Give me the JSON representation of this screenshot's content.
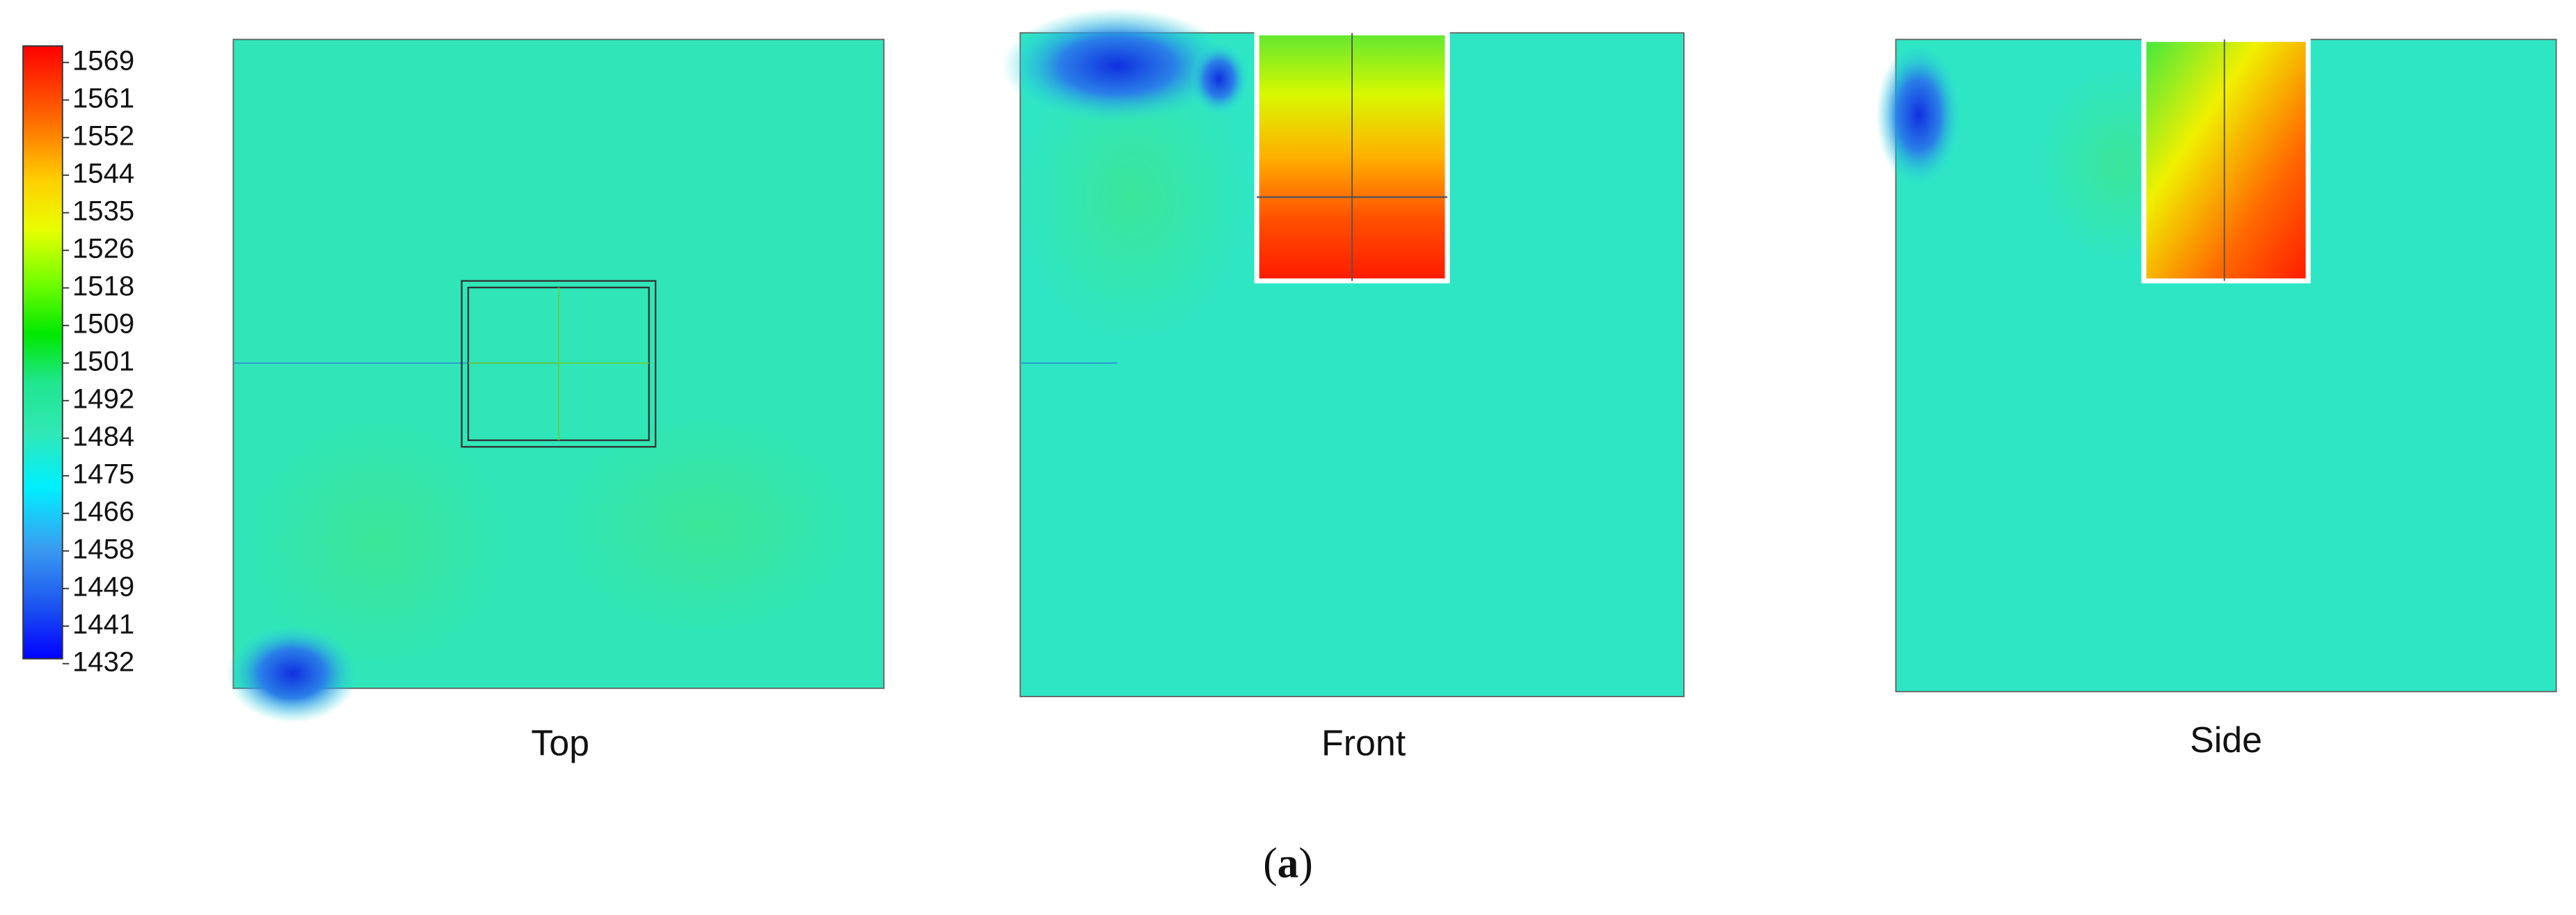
{
  "colorbar": {
    "labels": [
      1569,
      1561,
      1552,
      1544,
      1535,
      1526,
      1518,
      1509,
      1501,
      1492,
      1484,
      1475,
      1466,
      1458,
      1449,
      1441,
      1432
    ]
  },
  "panels": [
    {
      "label": "Top"
    },
    {
      "label": "Front"
    },
    {
      "label": "Side"
    }
  ],
  "caption": {
    "open": "(",
    "letter": "a",
    "close": ")"
  }
}
